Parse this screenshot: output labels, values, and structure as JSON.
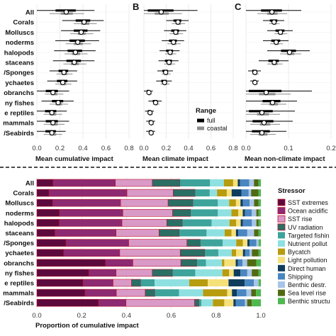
{
  "chart_data": [
    {
      "type": "scatter",
      "panel": "",
      "xlabel": "Mean cumulative impact",
      "xlim": [
        0,
        0.8
      ],
      "xticks": [
        "0.0",
        "0.2",
        "0.4",
        "0.6",
        "0.8"
      ],
      "categories": [
        "All",
        "Corals",
        "Molluscs",
        "noderms",
        "halopods",
        "staceans",
        "/Sponges",
        "ychaetes",
        "obranchs",
        "ny fishes",
        "e reptiles",
        "mammals",
        "/Seabirds"
      ],
      "series": [
        {
          "values": [
            0.25,
            0.4,
            0.38,
            0.35,
            0.33,
            0.32,
            0.23,
            0.22,
            0.13,
            0.18,
            0.12,
            0.13,
            0.12
          ],
          "spread": [
            0.25,
            0.18,
            0.17,
            0.19,
            0.18,
            0.18,
            0.12,
            0.13,
            0.15,
            0.14,
            0.14,
            0.15,
            0.13
          ]
        },
        {
          "values": [
            0.26,
            0.42,
            0.39,
            0.36,
            0.34,
            0.33,
            0.24,
            0.23,
            0.15,
            0.19,
            0.14,
            0.15,
            0.14
          ],
          "spread": [
            0.15,
            0.1,
            0.1,
            0.11,
            0.1,
            0.1,
            0.07,
            0.07,
            0.08,
            0.08,
            0.08,
            0.09,
            0.08
          ]
        }
      ]
    },
    {
      "type": "scatter",
      "panel": "B",
      "xlabel": "Mean climate impact",
      "xlim": [
        0,
        0.8
      ],
      "xticks": [
        "0.0",
        "0.2",
        "0.4",
        "0.6",
        "0.8"
      ],
      "series": [
        {
          "values": [
            0.15,
            0.3,
            0.28,
            0.26,
            0.23,
            0.22,
            0.19,
            0.18,
            0.04,
            0.1,
            0.05,
            0.06,
            0.06
          ],
          "spread": [
            0.33,
            0.1,
            0.1,
            0.1,
            0.09,
            0.09,
            0.07,
            0.07,
            0.04,
            0.06,
            0.04,
            0.04,
            0.04
          ]
        },
        {
          "values": [
            0.16,
            0.31,
            0.29,
            0.27,
            0.24,
            0.23,
            0.2,
            0.19,
            0.05,
            0.11,
            0.06,
            0.07,
            0.07
          ],
          "spread": [
            0.18,
            0.06,
            0.06,
            0.06,
            0.05,
            0.05,
            0.04,
            0.04,
            0.02,
            0.03,
            0.02,
            0.02,
            0.02
          ]
        }
      ]
    },
    {
      "type": "scatter",
      "panel": "C",
      "xlabel": "Mean non-climate impact",
      "xlim": [
        0,
        0.2
      ],
      "xticks": [
        "0.0",
        "0.1",
        "0.2"
      ],
      "series": [
        {
          "values": [
            0.06,
            0.065,
            0.08,
            0.07,
            0.1,
            0.065,
            0.02,
            0.02,
            0.045,
            0.06,
            0.035,
            0.04,
            0.035
          ],
          "spread": [
            0.07,
            0.025,
            0.03,
            0.03,
            0.05,
            0.035,
            0.015,
            0.01,
            0.11,
            0.06,
            0.08,
            0.07,
            0.06
          ]
        },
        {
          "values": [
            0.062,
            0.067,
            0.082,
            0.072,
            0.105,
            0.068,
            0.022,
            0.022,
            0.05,
            0.065,
            0.04,
            0.045,
            0.04
          ],
          "spread": [
            0.035,
            0.012,
            0.015,
            0.015,
            0.025,
            0.018,
            0.008,
            0.006,
            0.055,
            0.03,
            0.04,
            0.035,
            0.03
          ]
        }
      ]
    },
    {
      "type": "bar",
      "stacked": true,
      "orientation": "horizontal",
      "xlabel": "Proportion of cumulative impact",
      "xlim": [
        0,
        1
      ],
      "xticks": [
        "0.0",
        "0.2",
        "0.4",
        "0.6",
        "0.8",
        "1.0"
      ],
      "categories": [
        "All",
        "Corals",
        "Molluscs",
        "noderms",
        "halopods",
        "staceans",
        "/Sponges",
        "ychaetes",
        "obranchs",
        "ny fishes",
        "e reptiles",
        "mammals",
        "/Seabirds"
      ],
      "legend_title": "Stressor",
      "legend_position": "right",
      "series": [
        {
          "name": "SST extremes",
          "color": "#5c0a3e",
          "values": [
            0.07,
            0.05,
            0.07,
            0.1,
            0.1,
            0.08,
            0.13,
            0.12,
            0.3,
            0.23,
            0.2,
            0.2,
            0.27
          ]
        },
        {
          "name": "Ocean acidific",
          "color": "#8c2a72",
          "values": [
            0.27,
            0.32,
            0.3,
            0.28,
            0.28,
            0.27,
            0.28,
            0.25,
            0.12,
            0.12,
            0.13,
            0.13,
            0.12
          ]
        },
        {
          "name": "SST rise",
          "color": "#d99ac8",
          "values": [
            0.16,
            0.19,
            0.21,
            0.22,
            0.2,
            0.19,
            0.26,
            0.27,
            0.21,
            0.16,
            0.08,
            0.12,
            0.3
          ]
        },
        {
          "name": "UV radiation",
          "color": "#2a6e64",
          "values": [
            0.12,
            0.09,
            0.11,
            0.08,
            0.07,
            0.09,
            0.06,
            0.11,
            0.07,
            0.09,
            0.04,
            0.04,
            0.02
          ]
        },
        {
          "name": "Targeted fishin",
          "color": "#3ea39a",
          "values": [
            0.13,
            0.06,
            0.11,
            0.12,
            0.13,
            0.12,
            0.1,
            0.06,
            0.04,
            0.1,
            0.06,
            0.1,
            0.01
          ]
        },
        {
          "name": "Nutrient pollut",
          "color": "#8fe0e0",
          "values": [
            0.06,
            0.03,
            0.05,
            0.06,
            0.08,
            0.08,
            0.06,
            0.06,
            0.07,
            0.12,
            0.15,
            0.1,
            0.05
          ]
        },
        {
          "name": "Bycatch",
          "color": "#b89c10",
          "values": [
            0.04,
            0.04,
            0.03,
            0.03,
            0.03,
            0.03,
            0.03,
            0.02,
            0.01,
            0.03,
            0.08,
            0.1,
            0.05
          ]
        },
        {
          "name": "Light pollution",
          "color": "#f5e07a",
          "values": [
            0.02,
            0.02,
            0.02,
            0.02,
            0.02,
            0.02,
            0.02,
            0.03,
            0.05,
            0.02,
            0.09,
            0.02,
            0.04
          ]
        },
        {
          "name": "Direct human",
          "color": "#0f3c5c",
          "values": [
            0.01,
            0.04,
            0.01,
            0.01,
            0.01,
            0.01,
            0.01,
            0.01,
            0.01,
            0.03,
            0.07,
            0.02,
            0.01
          ]
        },
        {
          "name": "Shipping",
          "color": "#4a86c0",
          "values": [
            0.04,
            0.03,
            0.03,
            0.03,
            0.04,
            0.04,
            0.03,
            0.02,
            0.02,
            0.03,
            0.04,
            0.04,
            0.04
          ]
        },
        {
          "name": "Benthic destr.",
          "color": "#a8c4e8",
          "values": [
            0.02,
            0.01,
            0.02,
            0.02,
            0.02,
            0.03,
            0.01,
            0.01,
            0.02,
            0.02,
            0.02,
            0.02,
            0.01
          ]
        },
        {
          "name": "Sea level rise",
          "color": "#506a14",
          "values": [
            0.02,
            0.03,
            0.02,
            0.01,
            0.01,
            0.02,
            0.0,
            0.03,
            0.04,
            0.03,
            0.0,
            0.02,
            0.02
          ]
        },
        {
          "name": "Benthic structu",
          "color": "#50b850",
          "values": [
            0.01,
            0.01,
            0.01,
            0.01,
            0.01,
            0.01,
            0.01,
            0.01,
            0.02,
            0.01,
            0.01,
            0.02,
            0.04
          ]
        }
      ]
    }
  ],
  "range_legend": {
    "title": "Range",
    "items": [
      {
        "label": "full",
        "color": "#000000"
      },
      {
        "label": "coastal",
        "color": "#8c8c8c"
      }
    ]
  }
}
